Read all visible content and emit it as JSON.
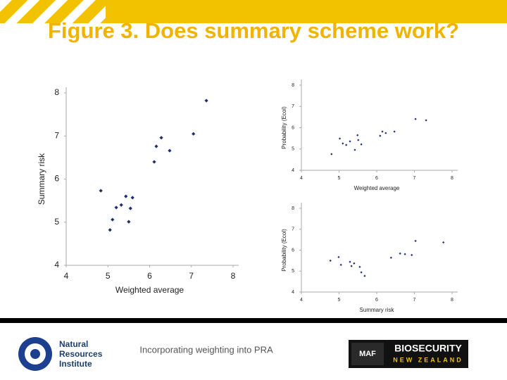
{
  "title": "Figure 3. Does summary scheme work?",
  "footer": {
    "text": "Incorporating weighting into PRA",
    "left_logo": [
      "Natural",
      "Resources",
      "Institute"
    ],
    "right_logo": {
      "badge": "MAF",
      "name": "BIOSECURITY",
      "sub": "NEW ZEALAND"
    }
  },
  "chart_data": [
    {
      "type": "scatter",
      "xlabel": "Weighted average",
      "ylabel": "Summary risk",
      "color": "#1f2f6e",
      "x": [
        4.83,
        5.05,
        5.11,
        5.2,
        5.32,
        5.43,
        5.59,
        5.54,
        5.5,
        6.11,
        6.16,
        6.28,
        6.48,
        7.05,
        7.36
      ],
      "y": [
        5.73,
        4.82,
        5.06,
        5.34,
        5.4,
        5.6,
        5.57,
        5.32,
        5.01,
        6.4,
        6.76,
        6.96,
        6.66,
        7.05,
        7.82
      ],
      "xlim": [
        4,
        8
      ],
      "ylim": [
        4,
        8
      ],
      "xticks": [
        4,
        5,
        6,
        7,
        8
      ],
      "yticks": [
        4,
        5,
        6,
        7,
        8
      ]
    },
    {
      "type": "scatter",
      "xlabel": "Weighted average",
      "ylabel": "Probability (Ecol)",
      "color": "#1f2f6e",
      "x": [
        4.8,
        5.02,
        5.1,
        5.19,
        5.29,
        5.42,
        5.49,
        5.51,
        5.59,
        6.09,
        6.15,
        6.24,
        6.47,
        7.03,
        7.31
      ],
      "y": [
        4.76,
        5.49,
        5.26,
        5.19,
        5.36,
        4.96,
        5.65,
        5.42,
        5.22,
        5.62,
        5.82,
        5.75,
        5.82,
        6.41,
        6.35
      ],
      "xlim": [
        4,
        8
      ],
      "ylim": [
        4,
        8
      ],
      "xticks": [
        4,
        5,
        6,
        7,
        8
      ],
      "yticks": [
        4,
        5,
        6,
        7,
        8
      ]
    },
    {
      "type": "scatter",
      "xlabel": "Summary risk",
      "ylabel": "Probability (Ecol)",
      "color": "#1f2f6e",
      "x": [
        4.77,
        4.99,
        5.05,
        5.29,
        5.33,
        5.4,
        5.55,
        5.59,
        5.68,
        6.38,
        6.62,
        6.75,
        6.93,
        7.03,
        7.77
      ],
      "y": [
        5.5,
        5.67,
        5.3,
        5.44,
        5.24,
        5.37,
        5.2,
        4.94,
        4.77,
        5.64,
        5.84,
        5.81,
        5.77,
        6.44,
        6.37
      ],
      "xlim": [
        4,
        8
      ],
      "ylim": [
        4,
        8
      ],
      "xticks": [
        4,
        5,
        6,
        7,
        8
      ],
      "yticks": [
        4,
        5,
        6,
        7,
        8
      ]
    }
  ]
}
